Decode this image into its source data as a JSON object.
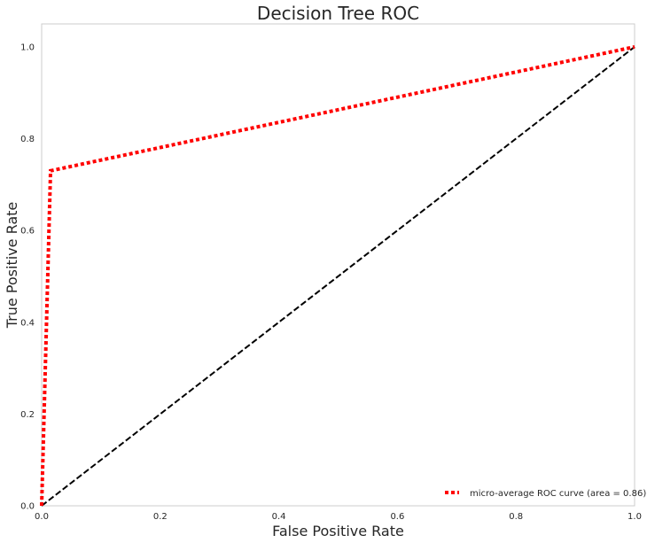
{
  "chart_data": {
    "type": "line",
    "title": "Decision Tree ROC",
    "xlabel": "False Positive Rate",
    "ylabel": "True Positive Rate",
    "xlim": [
      0.0,
      1.0
    ],
    "ylim": [
      0.0,
      1.05
    ],
    "xticks": [
      0.0,
      0.2,
      0.4,
      0.6,
      0.8,
      1.0
    ],
    "yticks": [
      0.0,
      0.2,
      0.4,
      0.6,
      0.8,
      1.0
    ],
    "xtick_labels": [
      "0.0",
      "0.2",
      "0.4",
      "0.6",
      "0.8",
      "1.0"
    ],
    "ytick_labels": [
      "0.0",
      "0.2",
      "0.4",
      "0.6",
      "0.8",
      "1.0"
    ],
    "grid": false,
    "legend_position": "lower-right",
    "series": [
      {
        "name": "micro-average ROC curve (area = 0.86)",
        "color": "#ff0000",
        "style": "dotted",
        "x": [
          0.0,
          0.015,
          1.0
        ],
        "y": [
          0.0,
          0.73,
          1.0
        ]
      },
      {
        "color": "#000000",
        "style": "dashed",
        "x": [
          0.0,
          1.0
        ],
        "y": [
          0.0,
          1.0
        ]
      }
    ]
  }
}
